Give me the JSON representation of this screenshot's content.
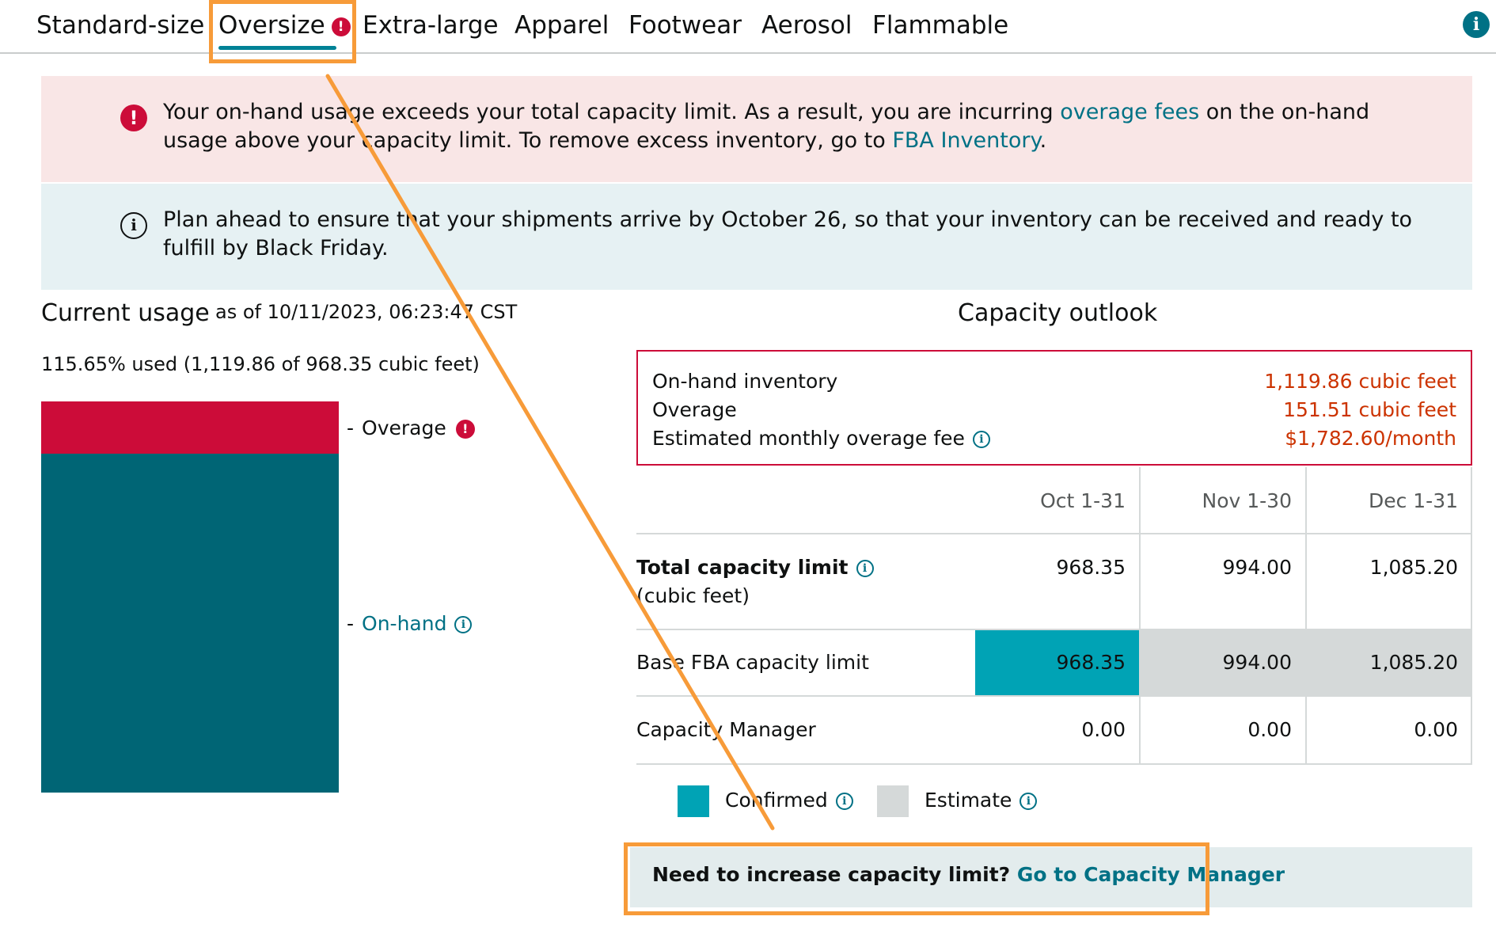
{
  "tabs": [
    {
      "label": "Standard-size"
    },
    {
      "label": "Oversize",
      "active": true,
      "has_error": true
    },
    {
      "label": "Extra-large"
    },
    {
      "label": "Apparel"
    },
    {
      "label": "Footwear"
    },
    {
      "label": "Aerosol"
    },
    {
      "label": "Flammable"
    }
  ],
  "alerts": {
    "error": {
      "text_before": "Your on-hand usage exceeds your total capacity limit. As a result, you are incurring ",
      "link1": "overage fees",
      "text_middle": " on the on-hand usage above your capacity limit. To remove excess inventory, go to ",
      "link2": "FBA Inventory",
      "text_after": "."
    },
    "info": {
      "text": "Plan ahead to ensure that your shipments arrive by October 26, so that your inventory can be received and ready to fulfill by Black Friday."
    }
  },
  "current_usage": {
    "title": "Current usage",
    "as_of": "as of 10/11/2023, 06:23:47 CST",
    "used_text": "115.65% used (1,119.86 of 968.35 cubic feet)",
    "legend_overage": "Overage",
    "legend_onhand": "On-hand",
    "dash": "-"
  },
  "capacity_outlook": {
    "title": "Capacity outlook",
    "summary": [
      {
        "label": "On-hand inventory",
        "value": "1,119.86 cubic feet"
      },
      {
        "label": "Overage",
        "value": "151.51 cubic feet"
      },
      {
        "label": "Estimated monthly overage fee",
        "value": "$1,782.60/month",
        "info": true
      }
    ],
    "columns": [
      "Oct 1-31",
      "Nov 1-30",
      "Dec 1-31"
    ],
    "rows": [
      {
        "label": "Total capacity limit",
        "sublabel": "(cubic feet)",
        "values": [
          "968.35",
          "994.00",
          "1,085.20"
        ]
      },
      {
        "label": "Base FBA capacity limit",
        "values": [
          "968.35",
          "994.00",
          "1,085.20"
        ]
      },
      {
        "label": "Capacity Manager",
        "values": [
          "0.00",
          "0.00",
          "0.00"
        ]
      }
    ],
    "legend": {
      "confirmed": "Confirmed",
      "estimate": "Estimate"
    }
  },
  "cta": {
    "text": "Need to increase capacity limit?",
    "link": "Go to Capacity Manager"
  },
  "colors": {
    "error": "#cc0c39",
    "teal_dark": "#006575",
    "teal_confirmed": "#00a3b5",
    "estimate_grey": "#d5d9d9",
    "link": "#007185",
    "annotation": "#f79b39"
  }
}
